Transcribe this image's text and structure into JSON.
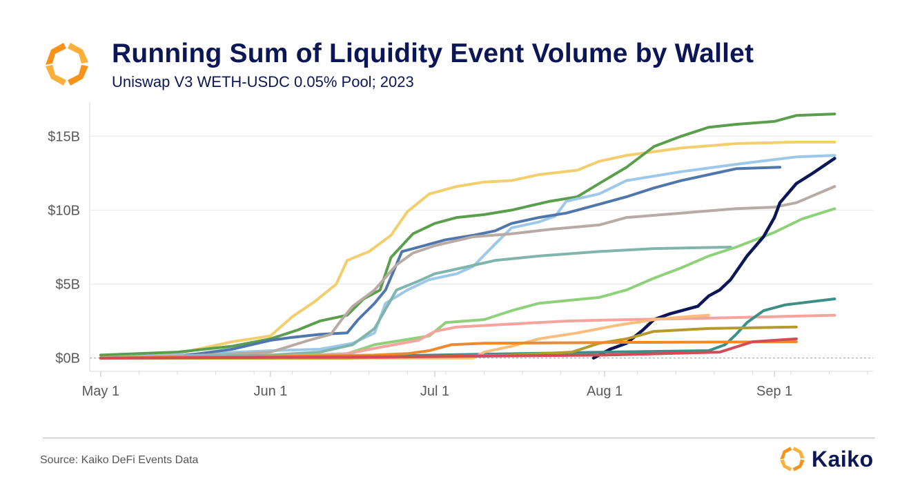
{
  "header": {
    "title": "Running Sum of Liquidity Event Volume by Wallet",
    "subtitle": "Uniswap V3 WETH-USDC 0.05% Pool; 2023"
  },
  "footer": {
    "source": "Source: Kaiko DeFi Events Data",
    "brand": "Kaiko"
  },
  "colors": {
    "title": "#0b1656",
    "logo_orange": "#f7931a",
    "logo_yellow": "#fbb03b"
  },
  "chart_data": {
    "type": "line",
    "title": "Running Sum of Liquidity Event Volume by Wallet",
    "subtitle": "Uniswap V3 WETH-USDC 0.05% Pool; 2023",
    "xlabel": "",
    "ylabel": "",
    "x_ticks": [
      "May 1",
      "Jun 1",
      "Jul 1",
      "Aug 1",
      "Sep 1"
    ],
    "x_tick_dates": [
      "2023-05-01",
      "2023-06-01",
      "2023-07-01",
      "2023-08-01",
      "2023-09-01"
    ],
    "xlim": [
      "2023-04-29",
      "2023-09-19"
    ],
    "y_ticks": [
      "$0B",
      "$5B",
      "$10B",
      "$15B"
    ],
    "y_tick_values": [
      0,
      5,
      10,
      15
    ],
    "ylim": [
      -0.9,
      17.3
    ],
    "y_unit": "billion USD",
    "grid": "horizontal",
    "legend": "none",
    "series": [
      {
        "color": "#f2ce6c",
        "points": [
          [
            "2023-05-01",
            0
          ],
          [
            "2023-05-15",
            0.3
          ],
          [
            "2023-05-25",
            1.1
          ],
          [
            "2023-06-01",
            1.5
          ],
          [
            "2023-06-05",
            2.8
          ],
          [
            "2023-06-09",
            3.8
          ],
          [
            "2023-06-13",
            5.0
          ],
          [
            "2023-06-15",
            6.6
          ],
          [
            "2023-06-19",
            7.2
          ],
          [
            "2023-06-23",
            8.3
          ],
          [
            "2023-06-26",
            9.9
          ],
          [
            "2023-06-30",
            11.1
          ],
          [
            "2023-07-05",
            11.6
          ],
          [
            "2023-07-10",
            11.9
          ],
          [
            "2023-07-15",
            12.0
          ],
          [
            "2023-07-20",
            12.4
          ],
          [
            "2023-07-27",
            12.7
          ],
          [
            "2023-07-31",
            13.3
          ],
          [
            "2023-08-05",
            13.7
          ],
          [
            "2023-08-15",
            14.2
          ],
          [
            "2023-08-25",
            14.5
          ],
          [
            "2023-09-05",
            14.6
          ],
          [
            "2023-09-12",
            14.6
          ]
        ]
      },
      {
        "color": "#5a9e4e",
        "points": [
          [
            "2023-05-01",
            0.2
          ],
          [
            "2023-05-15",
            0.4
          ],
          [
            "2023-05-25",
            0.8
          ],
          [
            "2023-06-01",
            1.3
          ],
          [
            "2023-06-06",
            1.9
          ],
          [
            "2023-06-10",
            2.5
          ],
          [
            "2023-06-15",
            2.9
          ],
          [
            "2023-06-18",
            4.0
          ],
          [
            "2023-06-21",
            4.6
          ],
          [
            "2023-06-23",
            6.8
          ],
          [
            "2023-06-27",
            8.4
          ],
          [
            "2023-07-01",
            9.1
          ],
          [
            "2023-07-05",
            9.5
          ],
          [
            "2023-07-10",
            9.7
          ],
          [
            "2023-07-15",
            10.0
          ],
          [
            "2023-07-22",
            10.6
          ],
          [
            "2023-07-27",
            10.9
          ],
          [
            "2023-07-31",
            11.8
          ],
          [
            "2023-08-05",
            12.9
          ],
          [
            "2023-08-10",
            14.3
          ],
          [
            "2023-08-15",
            15.0
          ],
          [
            "2023-08-20",
            15.6
          ],
          [
            "2023-08-25",
            15.8
          ],
          [
            "2023-09-01",
            16.0
          ],
          [
            "2023-09-05",
            16.4
          ],
          [
            "2023-09-12",
            16.5
          ]
        ]
      },
      {
        "color": "#9ec8e8",
        "points": [
          [
            "2023-05-01",
            0
          ],
          [
            "2023-05-20",
            0.3
          ],
          [
            "2023-06-01",
            0.5
          ],
          [
            "2023-06-10",
            0.6
          ],
          [
            "2023-06-16",
            1.0
          ],
          [
            "2023-06-20",
            1.7
          ],
          [
            "2023-06-22",
            3.7
          ],
          [
            "2023-06-26",
            4.6
          ],
          [
            "2023-06-30",
            5.3
          ],
          [
            "2023-07-05",
            5.7
          ],
          [
            "2023-07-08",
            6.2
          ],
          [
            "2023-07-12",
            7.7
          ],
          [
            "2023-07-15",
            8.8
          ],
          [
            "2023-07-20",
            9.2
          ],
          [
            "2023-07-23",
            9.6
          ],
          [
            "2023-07-25",
            10.6
          ],
          [
            "2023-07-31",
            11.1
          ],
          [
            "2023-08-05",
            12.0
          ],
          [
            "2023-08-15",
            12.6
          ],
          [
            "2023-08-25",
            13.1
          ],
          [
            "2023-09-05",
            13.6
          ],
          [
            "2023-09-12",
            13.7
          ]
        ]
      },
      {
        "color": "#4f77ab",
        "points": [
          [
            "2023-05-01",
            0
          ],
          [
            "2023-05-15",
            0.1
          ],
          [
            "2023-05-25",
            0.6
          ],
          [
            "2023-06-01",
            1.2
          ],
          [
            "2023-06-05",
            1.4
          ],
          [
            "2023-06-10",
            1.6
          ],
          [
            "2023-06-15",
            1.7
          ],
          [
            "2023-06-17",
            2.6
          ],
          [
            "2023-06-20",
            3.7
          ],
          [
            "2023-06-22",
            4.6
          ],
          [
            "2023-06-25",
            7.2
          ],
          [
            "2023-06-29",
            7.6
          ],
          [
            "2023-07-03",
            8.0
          ],
          [
            "2023-07-08",
            8.3
          ],
          [
            "2023-07-12",
            8.6
          ],
          [
            "2023-07-15",
            9.1
          ],
          [
            "2023-07-20",
            9.5
          ],
          [
            "2023-07-25",
            9.8
          ],
          [
            "2023-07-31",
            10.4
          ],
          [
            "2023-08-05",
            10.9
          ],
          [
            "2023-08-10",
            11.5
          ],
          [
            "2023-08-15",
            12.0
          ],
          [
            "2023-08-20",
            12.4
          ],
          [
            "2023-08-25",
            12.8
          ],
          [
            "2023-09-02",
            12.9
          ]
        ]
      },
      {
        "color": "#b8aaa5",
        "points": [
          [
            "2023-05-01",
            0
          ],
          [
            "2023-05-20",
            0.2
          ],
          [
            "2023-06-01",
            0.4
          ],
          [
            "2023-06-08",
            1.2
          ],
          [
            "2023-06-12",
            1.6
          ],
          [
            "2023-06-14",
            2.6
          ],
          [
            "2023-06-16",
            3.5
          ],
          [
            "2023-06-20",
            4.6
          ],
          [
            "2023-06-24",
            6.3
          ],
          [
            "2023-06-27",
            7.1
          ],
          [
            "2023-07-01",
            7.6
          ],
          [
            "2023-07-08",
            8.2
          ],
          [
            "2023-07-15",
            8.4
          ],
          [
            "2023-07-22",
            8.7
          ],
          [
            "2023-07-31",
            9.0
          ],
          [
            "2023-08-05",
            9.5
          ],
          [
            "2023-08-15",
            9.8
          ],
          [
            "2023-08-25",
            10.1
          ],
          [
            "2023-09-01",
            10.2
          ],
          [
            "2023-09-05",
            10.5
          ],
          [
            "2023-09-12",
            11.6
          ]
        ]
      },
      {
        "color": "#7fb5ad",
        "points": [
          [
            "2023-05-01",
            0
          ],
          [
            "2023-06-01",
            0.2
          ],
          [
            "2023-06-10",
            0.4
          ],
          [
            "2023-06-16",
            0.9
          ],
          [
            "2023-06-20",
            2.0
          ],
          [
            "2023-06-24",
            4.6
          ],
          [
            "2023-06-28",
            5.2
          ],
          [
            "2023-07-01",
            5.7
          ],
          [
            "2023-07-06",
            6.1
          ],
          [
            "2023-07-12",
            6.6
          ],
          [
            "2023-07-20",
            6.9
          ],
          [
            "2023-07-31",
            7.2
          ],
          [
            "2023-08-10",
            7.4
          ],
          [
            "2023-08-24",
            7.5
          ]
        ]
      },
      {
        "color": "#8fd17a",
        "points": [
          [
            "2023-05-01",
            0
          ],
          [
            "2023-06-01",
            0.1
          ],
          [
            "2023-06-15",
            0.3
          ],
          [
            "2023-06-20",
            0.9
          ],
          [
            "2023-06-30",
            1.5
          ],
          [
            "2023-07-03",
            2.4
          ],
          [
            "2023-07-10",
            2.6
          ],
          [
            "2023-07-15",
            3.2
          ],
          [
            "2023-07-20",
            3.7
          ],
          [
            "2023-07-31",
            4.1
          ],
          [
            "2023-08-05",
            4.6
          ],
          [
            "2023-08-10",
            5.4
          ],
          [
            "2023-08-15",
            6.1
          ],
          [
            "2023-08-20",
            6.9
          ],
          [
            "2023-08-25",
            7.5
          ],
          [
            "2023-09-01",
            8.5
          ],
          [
            "2023-09-06",
            9.4
          ],
          [
            "2023-09-12",
            10.1
          ]
        ]
      },
      {
        "color": "#0b1656",
        "points": [
          [
            "2023-07-30",
            0
          ],
          [
            "2023-08-02",
            0.6
          ],
          [
            "2023-08-05",
            1.0
          ],
          [
            "2023-08-08",
            1.9
          ],
          [
            "2023-08-10",
            2.6
          ],
          [
            "2023-08-13",
            3.0
          ],
          [
            "2023-08-16",
            3.3
          ],
          [
            "2023-08-18",
            3.5
          ],
          [
            "2023-08-20",
            4.2
          ],
          [
            "2023-08-22",
            4.6
          ],
          [
            "2023-08-24",
            5.3
          ],
          [
            "2023-08-27",
            6.9
          ],
          [
            "2023-08-30",
            8.2
          ],
          [
            "2023-09-01",
            9.5
          ],
          [
            "2023-09-02",
            10.5
          ],
          [
            "2023-09-05",
            11.8
          ],
          [
            "2023-09-08",
            12.5
          ],
          [
            "2023-09-12",
            13.5
          ]
        ]
      },
      {
        "color": "#f5a39d",
        "points": [
          [
            "2023-05-01",
            0
          ],
          [
            "2023-06-01",
            0
          ],
          [
            "2023-06-15",
            0.3
          ],
          [
            "2023-06-22",
            0.8
          ],
          [
            "2023-06-28",
            1.2
          ],
          [
            "2023-07-01",
            1.8
          ],
          [
            "2023-07-05",
            2.1
          ],
          [
            "2023-07-15",
            2.3
          ],
          [
            "2023-07-25",
            2.5
          ],
          [
            "2023-08-05",
            2.6
          ],
          [
            "2023-08-20",
            2.7
          ],
          [
            "2023-09-01",
            2.8
          ],
          [
            "2023-09-12",
            2.9
          ]
        ]
      },
      {
        "color": "#3c8f88",
        "points": [
          [
            "2023-05-01",
            0
          ],
          [
            "2023-06-01",
            0
          ],
          [
            "2023-07-01",
            0.2
          ],
          [
            "2023-08-01",
            0.4
          ],
          [
            "2023-08-20",
            0.5
          ],
          [
            "2023-08-23",
            0.9
          ],
          [
            "2023-08-25",
            1.6
          ],
          [
            "2023-08-27",
            2.4
          ],
          [
            "2023-08-30",
            3.2
          ],
          [
            "2023-09-03",
            3.6
          ],
          [
            "2023-09-12",
            4.0
          ]
        ]
      },
      {
        "color": "#fbbd7b",
        "points": [
          [
            "2023-05-01",
            0
          ],
          [
            "2023-07-08",
            0
          ],
          [
            "2023-07-10",
            0.4
          ],
          [
            "2023-07-15",
            0.8
          ],
          [
            "2023-07-20",
            1.3
          ],
          [
            "2023-07-27",
            1.7
          ],
          [
            "2023-08-03",
            2.2
          ],
          [
            "2023-08-10",
            2.6
          ],
          [
            "2023-08-16",
            2.8
          ],
          [
            "2023-08-20",
            2.9
          ]
        ]
      },
      {
        "color": "#b59a2e",
        "points": [
          [
            "2023-05-01",
            0
          ],
          [
            "2023-06-15",
            0
          ],
          [
            "2023-07-15",
            0.2
          ],
          [
            "2023-07-26",
            0.4
          ],
          [
            "2023-07-31",
            1.0
          ],
          [
            "2023-08-05",
            1.3
          ],
          [
            "2023-08-10",
            1.8
          ],
          [
            "2023-08-20",
            2.0
          ],
          [
            "2023-09-05",
            2.1
          ]
        ]
      },
      {
        "color": "#f0892b",
        "points": [
          [
            "2023-05-01",
            0
          ],
          [
            "2023-06-01",
            0.1
          ],
          [
            "2023-06-20",
            0.2
          ],
          [
            "2023-06-26",
            0.3
          ],
          [
            "2023-06-30",
            0.5
          ],
          [
            "2023-07-04",
            0.9
          ],
          [
            "2023-07-10",
            1.0
          ],
          [
            "2023-08-01",
            1.05
          ],
          [
            "2023-09-05",
            1.1
          ]
        ]
      },
      {
        "color": "#d44a57",
        "points": [
          [
            "2023-05-01",
            0
          ],
          [
            "2023-07-01",
            0.1
          ],
          [
            "2023-08-01",
            0.2
          ],
          [
            "2023-08-22",
            0.4
          ],
          [
            "2023-08-28",
            1.1
          ],
          [
            "2023-09-05",
            1.3
          ]
        ]
      }
    ]
  }
}
